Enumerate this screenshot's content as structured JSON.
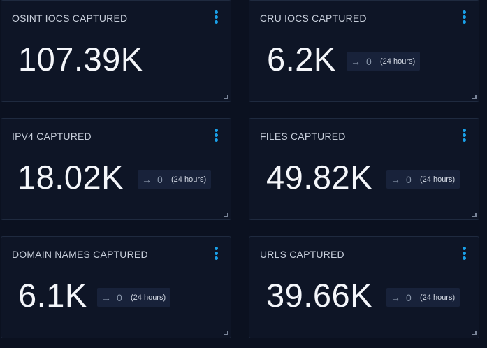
{
  "colors": {
    "background": "#0b1120",
    "card": "#0e1526",
    "accent": "#1aa0e8",
    "trend_bg": "#18223a"
  },
  "icons": {
    "menu": "kebab-menu-icon",
    "trend": "arrow-right-icon",
    "resize": "resize-handle-icon"
  },
  "cards": [
    {
      "title": "OSINT IOCS CAPTURED",
      "value": "107.39K"
    },
    {
      "title": "CRU IOCS CAPTURED",
      "value": "6.2K",
      "trend": {
        "arrow": "→",
        "delta": "0",
        "period": "(24 hours)"
      }
    },
    {
      "title": "IPV4 CAPTURED",
      "value": "18.02K",
      "trend": {
        "arrow": "→",
        "delta": "0",
        "period": "(24 hours)"
      }
    },
    {
      "title": "FILES CAPTURED",
      "value": "49.82K",
      "trend": {
        "arrow": "→",
        "delta": "0",
        "period": "(24 hours)"
      }
    },
    {
      "title": "DOMAIN NAMES CAPTURED",
      "value": "6.1K",
      "trend": {
        "arrow": "→",
        "delta": "0",
        "period": "(24 hours)"
      }
    },
    {
      "title": "URLS CAPTURED",
      "value": "39.66K",
      "trend": {
        "arrow": "→",
        "delta": "0",
        "period": "(24 hours)"
      }
    }
  ]
}
